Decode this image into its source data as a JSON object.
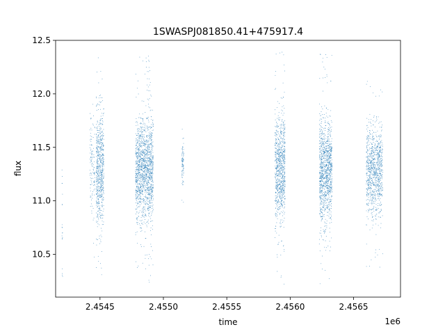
{
  "chart_data": {
    "type": "scatter",
    "title": "1SWASPJ081850.41+475917.4",
    "xlabel": "time",
    "ylabel": "flux",
    "x_offset_label": "1e6",
    "xlim": [
      2454150,
      2456870
    ],
    "ylim": [
      10.1,
      12.5
    ],
    "x_ticks": [
      {
        "value": 2454500,
        "label": "2.4545"
      },
      {
        "value": 2455000,
        "label": "2.4550"
      },
      {
        "value": 2455500,
        "label": "2.4555"
      },
      {
        "value": 2456000,
        "label": "2.4560"
      },
      {
        "value": 2456500,
        "label": "2.4565"
      }
    ],
    "y_ticks": [
      {
        "value": 10.5,
        "label": "10.5"
      },
      {
        "value": 11.0,
        "label": "11.0"
      },
      {
        "value": 11.5,
        "label": "11.5"
      },
      {
        "value": 12.0,
        "label": "12.0"
      },
      {
        "value": 12.5,
        "label": "12.5"
      }
    ],
    "grid": false,
    "legend": "none",
    "marker_color": "#1f77b4",
    "observing_seasons": [
      {
        "x_start": 2454200,
        "x_end": 2454205,
        "y_center": 10.7,
        "y_spread": 0.55,
        "points": 20
      },
      {
        "x_start": 2454420,
        "x_end": 2454460,
        "y_center": 11.3,
        "y_spread": 0.35,
        "points": 120
      },
      {
        "x_start": 2454470,
        "x_end": 2454530,
        "y_center": 11.3,
        "y_spread": 0.45,
        "points": 700
      },
      {
        "x_start": 2454780,
        "x_end": 2454920,
        "y_center": 11.28,
        "y_spread": 0.42,
        "points": 1600
      },
      {
        "x_start": 2455145,
        "x_end": 2455160,
        "y_center": 11.35,
        "y_spread": 0.18,
        "points": 90
      },
      {
        "x_start": 2455880,
        "x_end": 2455960,
        "y_center": 11.3,
        "y_spread": 0.42,
        "points": 900
      },
      {
        "x_start": 2456230,
        "x_end": 2456330,
        "y_center": 11.28,
        "y_spread": 0.42,
        "points": 1200
      },
      {
        "x_start": 2456600,
        "x_end": 2456730,
        "y_center": 11.28,
        "y_spread": 0.35,
        "points": 1000
      }
    ]
  }
}
